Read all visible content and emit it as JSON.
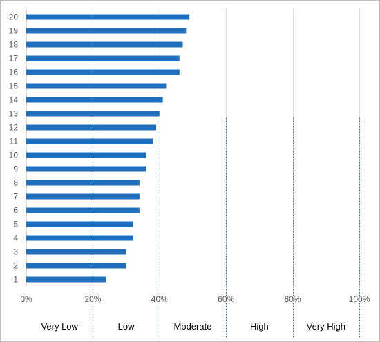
{
  "chart_data": {
    "type": "bar",
    "orientation": "horizontal",
    "categories": [
      "1",
      "2",
      "3",
      "4",
      "5",
      "6",
      "7",
      "8",
      "9",
      "10",
      "11",
      "12",
      "13",
      "14",
      "15",
      "16",
      "17",
      "18",
      "19",
      "20"
    ],
    "values": [
      24,
      30,
      30,
      32,
      32,
      34,
      34,
      34,
      36,
      36,
      38,
      39,
      40,
      41,
      42,
      46,
      46,
      47,
      48,
      49
    ],
    "x_unit": "%",
    "xlim": [
      0,
      100
    ],
    "x_ticks": [
      0,
      20,
      40,
      60,
      80,
      100
    ],
    "x_tick_labels": [
      "0%",
      "20%",
      "40%",
      "60%",
      "80%",
      "100%"
    ],
    "gridlines": "vertical",
    "bar_color": "#1f6fbf",
    "grid_color": "#d9d9d9",
    "band_line_color": "#2e75b6",
    "band_boundaries": [
      20,
      40,
      60,
      80,
      100
    ],
    "band_labels": [
      "Very Low",
      "Low",
      "Moderate",
      "High",
      "Very High"
    ],
    "band_ranges": [
      [
        0,
        20
      ],
      [
        20,
        40
      ],
      [
        40,
        60
      ],
      [
        60,
        80
      ],
      [
        80,
        100
      ]
    ],
    "band_line_top_category": [
      "12",
      "12",
      "12",
      "12",
      "12"
    ]
  }
}
